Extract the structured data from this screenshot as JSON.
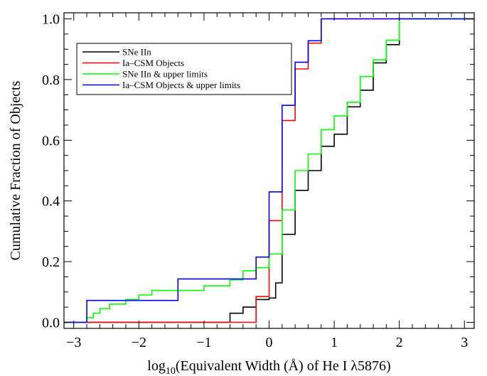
{
  "chart_data": {
    "type": "line",
    "step": true,
    "xlabel": {
      "prefix": "log",
      "sub": "10",
      "rest": "(Equivalent Width (Å) of He I λ5876)"
    },
    "ylabel": "Cumulative Fraction of Objects",
    "xlim": [
      -3.15,
      3.15
    ],
    "ylim": [
      -0.02,
      1.02
    ],
    "xticks": [
      -3,
      -2,
      -1,
      0,
      1,
      2,
      3
    ],
    "yticks": [
      0.0,
      0.2,
      0.4,
      0.6,
      0.8,
      1.0
    ],
    "ytick_labels": [
      "0.0",
      "0.2",
      "0.4",
      "0.6",
      "0.8",
      "1.0"
    ],
    "grid": false,
    "legend_position": "top-left",
    "series": [
      {
        "name": "SNe IIn",
        "color": "#000000",
        "points": [
          [
            -3.15,
            0.0
          ],
          [
            -0.6,
            0.0
          ],
          [
            -0.6,
            0.03
          ],
          [
            -0.4,
            0.03
          ],
          [
            -0.4,
            0.05
          ],
          [
            -0.2,
            0.05
          ],
          [
            -0.2,
            0.075
          ],
          [
            0.0,
            0.075
          ],
          [
            0.0,
            0.08
          ],
          [
            0.1,
            0.08
          ],
          [
            0.1,
            0.13
          ],
          [
            0.2,
            0.13
          ],
          [
            0.2,
            0.29
          ],
          [
            0.4,
            0.29
          ],
          [
            0.4,
            0.435
          ],
          [
            0.6,
            0.435
          ],
          [
            0.6,
            0.5
          ],
          [
            0.8,
            0.5
          ],
          [
            0.8,
            0.58
          ],
          [
            1.0,
            0.58
          ],
          [
            1.0,
            0.62
          ],
          [
            1.2,
            0.62
          ],
          [
            1.2,
            0.71
          ],
          [
            1.4,
            0.71
          ],
          [
            1.4,
            0.765
          ],
          [
            1.6,
            0.765
          ],
          [
            1.6,
            0.855
          ],
          [
            1.8,
            0.855
          ],
          [
            1.8,
            0.915
          ],
          [
            2.0,
            0.915
          ],
          [
            2.0,
            1.0
          ],
          [
            3.15,
            1.0
          ]
        ]
      },
      {
        "name": "Ia–CSM Objects",
        "color": "#ff0000",
        "points": [
          [
            -3.15,
            0.0
          ],
          [
            -0.2,
            0.0
          ],
          [
            -0.2,
            0.085
          ],
          [
            0.0,
            0.085
          ],
          [
            0.0,
            0.335
          ],
          [
            0.2,
            0.335
          ],
          [
            0.2,
            0.665
          ],
          [
            0.4,
            0.665
          ],
          [
            0.4,
            0.835
          ],
          [
            0.6,
            0.835
          ],
          [
            0.6,
            0.92
          ],
          [
            0.8,
            0.92
          ],
          [
            0.8,
            1.0
          ],
          [
            3.15,
            1.0
          ]
        ]
      },
      {
        "name": "SNe IIn & upper limits",
        "color": "#00ff00",
        "points": [
          [
            -3.15,
            0.0
          ],
          [
            -2.8,
            0.0
          ],
          [
            -2.8,
            0.015
          ],
          [
            -2.7,
            0.015
          ],
          [
            -2.7,
            0.03
          ],
          [
            -2.6,
            0.03
          ],
          [
            -2.6,
            0.045
          ],
          [
            -2.45,
            0.045
          ],
          [
            -2.45,
            0.06
          ],
          [
            -2.2,
            0.06
          ],
          [
            -2.2,
            0.075
          ],
          [
            -2.0,
            0.075
          ],
          [
            -2.0,
            0.09
          ],
          [
            -1.8,
            0.09
          ],
          [
            -1.8,
            0.105
          ],
          [
            -1.0,
            0.105
          ],
          [
            -1.0,
            0.12
          ],
          [
            -0.6,
            0.12
          ],
          [
            -0.6,
            0.14
          ],
          [
            -0.4,
            0.14
          ],
          [
            -0.4,
            0.17
          ],
          [
            -0.2,
            0.17
          ],
          [
            -0.2,
            0.18
          ],
          [
            0.0,
            0.18
          ],
          [
            0.0,
            0.225
          ],
          [
            0.2,
            0.225
          ],
          [
            0.2,
            0.37
          ],
          [
            0.4,
            0.37
          ],
          [
            0.4,
            0.5
          ],
          [
            0.6,
            0.5
          ],
          [
            0.6,
            0.555
          ],
          [
            0.8,
            0.555
          ],
          [
            0.8,
            0.635
          ],
          [
            1.0,
            0.635
          ],
          [
            1.0,
            0.68
          ],
          [
            1.2,
            0.68
          ],
          [
            1.2,
            0.725
          ],
          [
            1.4,
            0.725
          ],
          [
            1.4,
            0.81
          ],
          [
            1.6,
            0.81
          ],
          [
            1.6,
            0.865
          ],
          [
            1.8,
            0.865
          ],
          [
            1.8,
            0.93
          ],
          [
            2.0,
            0.93
          ],
          [
            2.0,
            1.0
          ],
          [
            3.15,
            1.0
          ]
        ]
      },
      {
        "name": "Ia–CSM Objects & upper limits",
        "color": "#0000ff",
        "points": [
          [
            -3.15,
            0.0
          ],
          [
            -2.8,
            0.0
          ],
          [
            -2.8,
            0.072
          ],
          [
            -1.4,
            0.072
          ],
          [
            -1.4,
            0.143
          ],
          [
            -0.2,
            0.143
          ],
          [
            -0.2,
            0.215
          ],
          [
            0.0,
            0.215
          ],
          [
            0.0,
            0.43
          ],
          [
            0.2,
            0.43
          ],
          [
            0.2,
            0.715
          ],
          [
            0.4,
            0.715
          ],
          [
            0.4,
            0.857
          ],
          [
            0.6,
            0.857
          ],
          [
            0.6,
            0.928
          ],
          [
            0.8,
            0.928
          ],
          [
            0.8,
            1.0
          ],
          [
            3.15,
            1.0
          ]
        ]
      }
    ]
  }
}
